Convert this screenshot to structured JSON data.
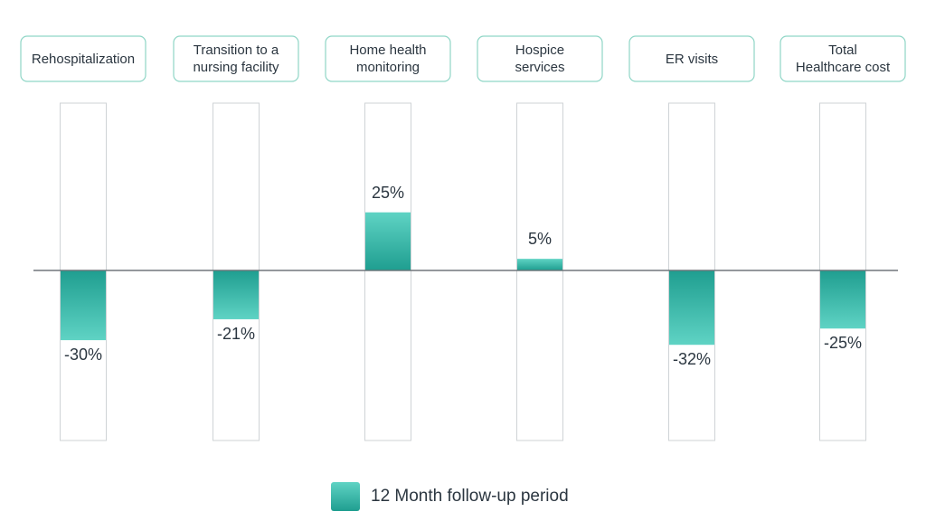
{
  "chart_data": {
    "type": "bar",
    "categories": [
      [
        "Rehospitalization"
      ],
      [
        "Transition to a",
        "nursing facility"
      ],
      [
        "Home health",
        "monitoring"
      ],
      [
        "Hospice",
        "services"
      ],
      [
        "ER visits"
      ],
      [
        "Total",
        "Healthcare cost"
      ]
    ],
    "series": [
      {
        "name": "12 Month follow-up period",
        "values": [
          -30,
          -21,
          25,
          5,
          -32,
          -25
        ],
        "labels": [
          "-30%",
          "-21%",
          "25%",
          "5%",
          "-32%",
          "-25%"
        ]
      }
    ],
    "unit": "%",
    "ylim": [
      -72,
      72
    ],
    "grid": false,
    "legend_position": "bottom-center",
    "colors": {
      "bar_light": "#5fd3c4",
      "bar_dark": "#1f9e90",
      "box_border": "#8fd6c6"
    }
  },
  "legend": {
    "label": "12 Month follow-up period"
  }
}
